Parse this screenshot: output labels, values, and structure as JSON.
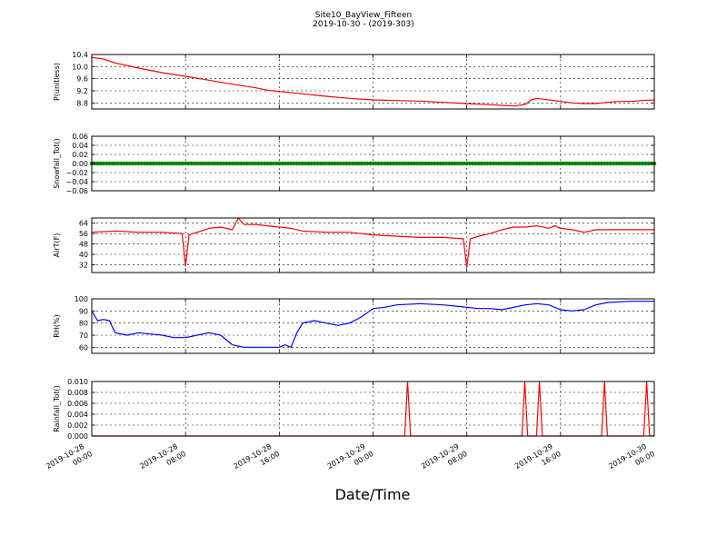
{
  "figure": {
    "title_line1": "Site10_BayView_Fifteen",
    "title_line2": "2019-10-30 - (2019-303)",
    "xlabel": "Date/Time"
  },
  "chart_data": {
    "type": "line",
    "title": "Site10_BayView_Fifteen",
    "subtitle": "2019-10-30 - (2019-303)",
    "xlabel": "Date/Time",
    "x_unit": "hours since 2019-10-28 00:00",
    "xlim": [
      0,
      48
    ],
    "x_ticks": [
      {
        "v": 0,
        "l1": "2019-10-28",
        "l2": "00:00"
      },
      {
        "v": 8,
        "l1": "2019-10-28",
        "l2": "08:00"
      },
      {
        "v": 16,
        "l1": "2019-10-28",
        "l2": "16:00"
      },
      {
        "v": 24,
        "l1": "2019-10-29",
        "l2": "00:00"
      },
      {
        "v": 32,
        "l1": "2019-10-29",
        "l2": "08:00"
      },
      {
        "v": 40,
        "l1": "2019-10-29",
        "l2": "16:00"
      },
      {
        "v": 48,
        "l1": "2019-10-30",
        "l2": "00:00"
      }
    ],
    "grid": true,
    "panels": [
      {
        "ylabel": "P(unitless)",
        "ylim": [
          8.6,
          10.4
        ],
        "yticks": [
          "8.8",
          "9.2",
          "9.6",
          "10.0",
          "10.4"
        ],
        "ytick_values": [
          8.8,
          9.2,
          9.6,
          10.0,
          10.4
        ],
        "color": "#ff0000",
        "dots": false,
        "series": {
          "x": [
            0,
            1,
            2,
            4,
            6,
            8,
            10,
            12,
            14,
            15,
            16,
            18,
            20,
            22,
            24,
            26,
            28,
            30,
            32,
            33,
            34,
            35,
            36,
            37,
            37.5,
            38,
            40,
            41,
            42,
            43,
            44,
            45,
            46,
            47,
            48
          ],
          "y": [
            10.3,
            10.25,
            10.12,
            9.95,
            9.8,
            9.68,
            9.55,
            9.42,
            9.3,
            9.22,
            9.18,
            9.1,
            9.02,
            8.95,
            8.9,
            8.88,
            8.86,
            8.82,
            8.78,
            8.76,
            8.74,
            8.72,
            8.7,
            8.75,
            8.9,
            8.95,
            8.85,
            8.8,
            8.78,
            8.78,
            8.82,
            8.85,
            8.85,
            8.88,
            8.9
          ]
        }
      },
      {
        "ylabel": "Snowfall_Tot()",
        "ylim": [
          -0.06,
          0.06
        ],
        "yticks": [
          "−0.06",
          "−0.04",
          "−0.02",
          "0.00",
          "0.02",
          "0.04",
          "0.06"
        ],
        "ytick_values": [
          -0.06,
          -0.04,
          -0.02,
          0.0,
          0.02,
          0.04,
          0.06
        ],
        "color": "#008000",
        "dots": true,
        "series": {
          "x": [
            0,
            48
          ],
          "y": [
            0,
            0
          ]
        }
      },
      {
        "ylabel": "AirT(F)",
        "ylim": [
          26,
          68
        ],
        "yticks": [
          "32",
          "40",
          "48",
          "56",
          "64"
        ],
        "ytick_values": [
          32,
          40,
          48,
          56,
          64
        ],
        "color": "#ff0000",
        "dots": false,
        "series": {
          "x": [
            0,
            2,
            4,
            6,
            7.7,
            8,
            8.3,
            9,
            10,
            11,
            12,
            12.5,
            13,
            14,
            15,
            16,
            17,
            18,
            20,
            22,
            24,
            26,
            28,
            30,
            31.7,
            32,
            32.3,
            33,
            34,
            35,
            36,
            37,
            38,
            39,
            39.5,
            40,
            41,
            42,
            43,
            44,
            46,
            48
          ],
          "y": [
            57,
            58,
            57,
            57,
            56,
            31,
            55,
            57,
            60,
            61,
            59,
            68,
            63,
            63,
            62,
            61,
            60,
            58,
            57,
            57,
            55,
            54,
            53,
            53,
            52,
            30,
            52,
            54,
            56,
            59,
            61,
            61,
            62,
            60,
            62,
            60,
            59,
            57,
            59,
            59,
            59,
            59
          ]
        }
      },
      {
        "ylabel": "RH(%)",
        "ylim": [
          55,
          100
        ],
        "yticks": [
          "60",
          "70",
          "80",
          "90",
          "100"
        ],
        "ytick_values": [
          60,
          70,
          80,
          90,
          100
        ],
        "color": "#0000ff",
        "dots": false,
        "series": {
          "x": [
            0,
            0.5,
            1,
            1.5,
            2,
            3,
            4,
            5,
            6,
            7,
            8,
            9,
            10,
            11,
            12,
            13,
            14,
            15,
            16,
            16.5,
            17,
            17.5,
            18,
            19,
            20,
            21,
            22,
            23,
            24,
            25,
            26,
            28,
            30,
            31,
            32,
            33,
            34,
            35,
            36,
            37,
            38,
            39,
            40,
            41,
            42,
            43,
            44,
            46,
            48
          ],
          "y": [
            90,
            82,
            83,
            82,
            72,
            70,
            72,
            71,
            70,
            68,
            68,
            70,
            72,
            70,
            62,
            60,
            60,
            60,
            60,
            62,
            60,
            72,
            80,
            82,
            80,
            78,
            80,
            85,
            92,
            93,
            95,
            96,
            95,
            94,
            93,
            92,
            92,
            91,
            93,
            95,
            96,
            95,
            91,
            90,
            91,
            95,
            97,
            98,
            98
          ]
        }
      },
      {
        "ylabel": "Rainfall_Tot()",
        "ylim": [
          0,
          0.01
        ],
        "yticks": [
          "0.000",
          "0.002",
          "0.004",
          "0.006",
          "0.008",
          "0.010"
        ],
        "ytick_values": [
          0,
          0.002,
          0.004,
          0.006,
          0.008,
          0.01
        ],
        "color": "#ff0000",
        "dots": false,
        "series": {
          "x": [
            0,
            26.7,
            26.95,
            27.2,
            36.7,
            36.95,
            37.2,
            37.95,
            38.2,
            38.45,
            43.5,
            43.75,
            44,
            47.1,
            47.35,
            47.6,
            48
          ],
          "y": [
            0,
            0,
            0.01,
            0,
            0,
            0.01,
            0,
            0,
            0.01,
            0,
            0,
            0.01,
            0,
            0,
            0.01,
            0,
            0
          ]
        }
      }
    ]
  }
}
